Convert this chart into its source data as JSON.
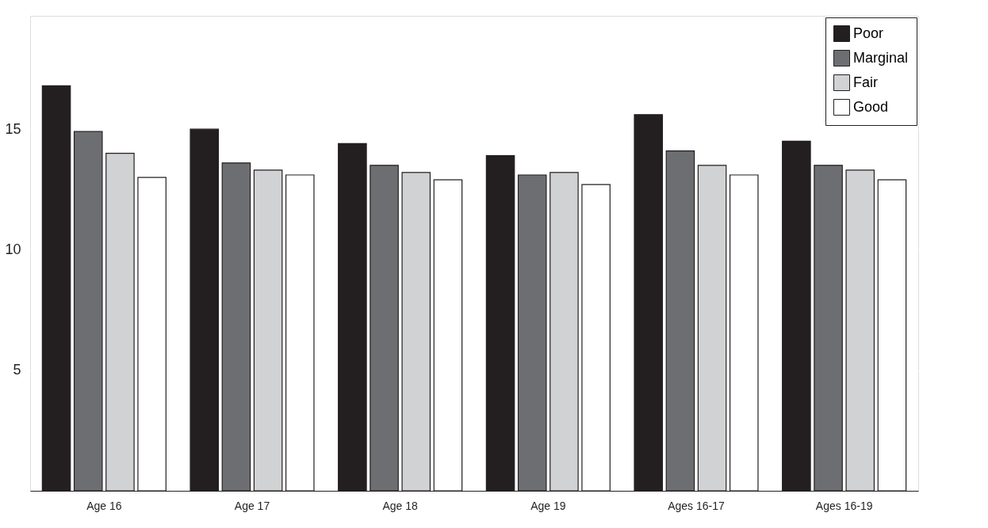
{
  "chart_data": {
    "type": "bar",
    "categories": [
      "Age 16",
      "Age 17",
      "Age 18",
      "Age 19",
      "Ages 16-17",
      "Ages 16-19"
    ],
    "series": [
      {
        "name": "Poor",
        "color": "#231f20",
        "values": [
          16.8,
          15.0,
          14.4,
          13.9,
          15.6,
          14.5
        ]
      },
      {
        "name": "Marginal",
        "color": "#6d6e71",
        "values": [
          14.9,
          13.6,
          13.5,
          13.1,
          14.1,
          13.5
        ]
      },
      {
        "name": "Fair",
        "color": "#d1d2d4",
        "values": [
          14.0,
          13.3,
          13.2,
          13.2,
          13.5,
          13.3
        ]
      },
      {
        "name": "Good",
        "color": "#ffffff",
        "values": [
          13.0,
          13.1,
          12.9,
          12.7,
          13.1,
          12.9
        ]
      }
    ],
    "ylim": [
      0,
      19.7
    ],
    "yticks": [
      5,
      10,
      15
    ],
    "grid": "y",
    "legend": "top right"
  }
}
